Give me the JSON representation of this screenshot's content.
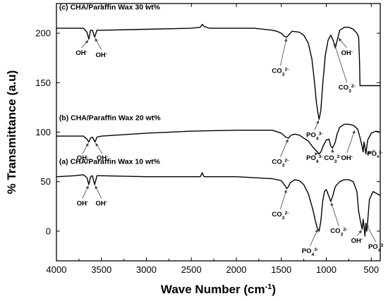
{
  "chart_data": {
    "type": "line",
    "xlabel": "Wave Number (cm",
    "xlabel_sup": "-1",
    "xlabel_close": ")",
    "ylabel": "% Transmittance (a.u)",
    "xlim": [
      4000,
      400
    ],
    "ylim": [
      -30,
      230
    ],
    "x_ticks": [
      4000,
      3500,
      3000,
      2500,
      2000,
      1500,
      1000,
      500
    ],
    "y_ticks": [
      0,
      50,
      100,
      150,
      200
    ],
    "grid": false,
    "legend": "none",
    "series": [
      {
        "name": "(c) CHA/Paraffin Wax 30 wt%",
        "color": "#000000",
        "points": [
          [
            4000,
            205
          ],
          [
            3800,
            205
          ],
          [
            3700,
            205
          ],
          [
            3660,
            201
          ],
          [
            3640,
            194
          ],
          [
            3620,
            203
          ],
          [
            3600,
            203
          ],
          [
            3575,
            196
          ],
          [
            3550,
            203
          ],
          [
            3500,
            203
          ],
          [
            3000,
            204
          ],
          [
            2500,
            205
          ],
          [
            2400,
            206
          ],
          [
            2380,
            209
          ],
          [
            2360,
            207
          ],
          [
            2300,
            205
          ],
          [
            2000,
            205
          ],
          [
            1800,
            205
          ],
          [
            1600,
            203
          ],
          [
            1550,
            202
          ],
          [
            1500,
            200
          ],
          [
            1470,
            197
          ],
          [
            1440,
            196
          ],
          [
            1410,
            199
          ],
          [
            1380,
            202
          ],
          [
            1300,
            201
          ],
          [
            1250,
            198
          ],
          [
            1200,
            190
          ],
          [
            1160,
            174
          ],
          [
            1130,
            150
          ],
          [
            1110,
            130
          ],
          [
            1090,
            118
          ],
          [
            1080,
            113
          ],
          [
            1060,
            122
          ],
          [
            1040,
            148
          ],
          [
            1010,
            178
          ],
          [
            980,
            193
          ],
          [
            950,
            198
          ],
          [
            920,
            192
          ],
          [
            900,
            185
          ],
          [
            870,
            196
          ],
          [
            850,
            203
          ],
          [
            800,
            206
          ],
          [
            750,
            206
          ],
          [
            700,
            204
          ],
          [
            660,
            200
          ],
          [
            640,
            196
          ],
          [
            630,
            170
          ],
          [
            625,
            147
          ],
          [
            400,
            147
          ]
        ]
      },
      {
        "name": "(b) CHA/Paraffin Wax 20 wt%",
        "color": "#000000",
        "points": [
          [
            4000,
            96
          ],
          [
            3800,
            96
          ],
          [
            3700,
            96
          ],
          [
            3660,
            93
          ],
          [
            3640,
            90
          ],
          [
            3620,
            94
          ],
          [
            3600,
            95
          ],
          [
            3570,
            90
          ],
          [
            3550,
            95
          ],
          [
            3500,
            96
          ],
          [
            3000,
            99
          ],
          [
            2500,
            101
          ],
          [
            2000,
            102
          ],
          [
            1600,
            102
          ],
          [
            1500,
            99
          ],
          [
            1450,
            95
          ],
          [
            1420,
            94
          ],
          [
            1390,
            97
          ],
          [
            1350,
            98
          ],
          [
            1300,
            97
          ],
          [
            1250,
            94
          ],
          [
            1200,
            91
          ],
          [
            1150,
            85
          ],
          [
            1100,
            80
          ],
          [
            1080,
            78
          ],
          [
            1060,
            80
          ],
          [
            1030,
            87
          ],
          [
            1000,
            92
          ],
          [
            970,
            93
          ],
          [
            950,
            86
          ],
          [
            930,
            84
          ],
          [
            900,
            90
          ],
          [
            880,
            98
          ],
          [
            850,
            105
          ],
          [
            800,
            108
          ],
          [
            750,
            108
          ],
          [
            700,
            107
          ],
          [
            650,
            103
          ],
          [
            620,
            93
          ],
          [
            600,
            85
          ],
          [
            590,
            80
          ],
          [
            580,
            90
          ],
          [
            570,
            85
          ],
          [
            560,
            78
          ],
          [
            540,
            92
          ],
          [
            500,
            99
          ],
          [
            450,
            101
          ],
          [
            400,
            100
          ]
        ]
      },
      {
        "name": "(a) CHA/Paraffin Wax 10 wt%",
        "color": "#000000",
        "points": [
          [
            4000,
            55
          ],
          [
            3800,
            56
          ],
          [
            3700,
            57
          ],
          [
            3660,
            54
          ],
          [
            3640,
            47
          ],
          [
            3620,
            55
          ],
          [
            3600,
            56
          ],
          [
            3575,
            47
          ],
          [
            3550,
            56
          ],
          [
            3500,
            56
          ],
          [
            3000,
            55
          ],
          [
            2500,
            55
          ],
          [
            2400,
            55
          ],
          [
            2380,
            59
          ],
          [
            2360,
            55
          ],
          [
            2000,
            55
          ],
          [
            1800,
            54
          ],
          [
            1600,
            53
          ],
          [
            1500,
            51
          ],
          [
            1460,
            46
          ],
          [
            1440,
            43
          ],
          [
            1420,
            45
          ],
          [
            1400,
            49
          ],
          [
            1350,
            52
          ],
          [
            1300,
            51
          ],
          [
            1250,
            47
          ],
          [
            1200,
            38
          ],
          [
            1150,
            22
          ],
          [
            1120,
            10
          ],
          [
            1100,
            3
          ],
          [
            1080,
            0
          ],
          [
            1060,
            10
          ],
          [
            1040,
            30
          ],
          [
            1020,
            40
          ],
          [
            1000,
            42
          ],
          [
            970,
            35
          ],
          [
            950,
            30
          ],
          [
            930,
            35
          ],
          [
            900,
            45
          ],
          [
            850,
            50
          ],
          [
            800,
            52
          ],
          [
            750,
            52
          ],
          [
            700,
            50
          ],
          [
            660,
            40
          ],
          [
            640,
            20
          ],
          [
            620,
            10
          ],
          [
            600,
            2
          ],
          [
            590,
            12
          ],
          [
            580,
            5
          ],
          [
            570,
            -5
          ],
          [
            560,
            8
          ],
          [
            550,
            0
          ],
          [
            540,
            10
          ],
          [
            520,
            32
          ],
          [
            480,
            40
          ],
          [
            440,
            38
          ],
          [
            400,
            36
          ]
        ]
      }
    ],
    "annotations": [
      {
        "text": "(c) CHA/Paraffin Wax 30 wt%",
        "kind": "panel",
        "x": 3970,
        "y": 224
      },
      {
        "text": "(b) CHA/Paraffin Wax 20 wt%",
        "kind": "panel",
        "x": 3970,
        "y": 112
      },
      {
        "text": "(a) CHA/Paraffin Wax 10 wt%",
        "kind": "panel",
        "x": 3970,
        "y": 68
      },
      {
        "text": "OH",
        "sup": "-",
        "x": 3720,
        "y": 178,
        "ax": 3640,
        "ay": 194,
        "size": "normal"
      },
      {
        "text": "OH",
        "sup": "-",
        "x": 3500,
        "y": 176,
        "ax": 3575,
        "ay": 196,
        "size": "normal"
      },
      {
        "text": "CO",
        "sub": "3",
        "sup": "2-",
        "x": 1510,
        "y": 160,
        "ax": 1440,
        "ay": 196,
        "size": "normal"
      },
      {
        "text": "PO",
        "sub": "4",
        "sup": "3-",
        "x": 1130,
        "y": 95,
        "ax": 1080,
        "ay": 113,
        "size": "normal"
      },
      {
        "text": "OH",
        "sup": "-",
        "x": 770,
        "y": 178,
        "ax": 870,
        "ay": 196,
        "size": "normal"
      },
      {
        "text": "CO",
        "sub": "3",
        "sup": "2-",
        "x": 770,
        "y": 143,
        "ax": 920,
        "ay": 192,
        "size": "normal"
      },
      {
        "text": "OH",
        "sup": "-",
        "x": 3710,
        "y": 72,
        "ax": 3640,
        "ay": 90,
        "size": "small"
      },
      {
        "text": "OH",
        "sup": "-",
        "x": 3490,
        "y": 72,
        "ax": 3570,
        "ay": 90,
        "size": "small"
      },
      {
        "text": "CO",
        "sub": "3",
        "sup": "2-",
        "x": 1510,
        "y": 68,
        "ax": 1420,
        "ay": 94,
        "size": "normal"
      },
      {
        "text": "PO",
        "sub": "4",
        "sup": "3-",
        "x": 1130,
        "y": 72,
        "ax": 1080,
        "ay": 78,
        "size": "normal"
      },
      {
        "text": "CO",
        "sub": "3",
        "sup": "2-",
        "x": 930,
        "y": 72,
        "ax": 930,
        "ay": 84,
        "size": "normal"
      },
      {
        "text": "OH",
        "sup": "-",
        "x": 770,
        "y": 72,
        "ax": 680,
        "ay": 103,
        "size": "normal"
      },
      {
        "text": "PO",
        "sub": "4",
        "sup": "3-",
        "x": 460,
        "y": 76,
        "ax": 560,
        "ay": 78,
        "size": "small"
      },
      {
        "text": "OH",
        "sup": "-",
        "x": 3710,
        "y": 26,
        "ax": 3640,
        "ay": 47,
        "size": "normal"
      },
      {
        "text": "OH",
        "sup": "-",
        "x": 3500,
        "y": 26,
        "ax": 3575,
        "ay": 47,
        "size": "normal"
      },
      {
        "text": "CO",
        "sub": "3",
        "sup": "2-",
        "x": 1510,
        "y": 15,
        "ax": 1440,
        "ay": 43,
        "size": "normal"
      },
      {
        "text": "PO",
        "sub": "4",
        "sup": "3-",
        "x": 1180,
        "y": -22,
        "ax": 1090,
        "ay": 3,
        "size": "normal"
      },
      {
        "text": "CO",
        "sub": "3",
        "sup": "2-",
        "x": 860,
        "y": -2,
        "ax": 950,
        "ay": 30,
        "size": "normal"
      },
      {
        "text": "OH",
        "sup": "-",
        "x": 660,
        "y": -12,
        "ax": 600,
        "ay": 2,
        "size": "normal"
      },
      {
        "text": "PO",
        "sub": "4",
        "sup": "3",
        "x": 450,
        "y": -18,
        "ax": 560,
        "ay": 8,
        "size": "normal"
      }
    ]
  }
}
